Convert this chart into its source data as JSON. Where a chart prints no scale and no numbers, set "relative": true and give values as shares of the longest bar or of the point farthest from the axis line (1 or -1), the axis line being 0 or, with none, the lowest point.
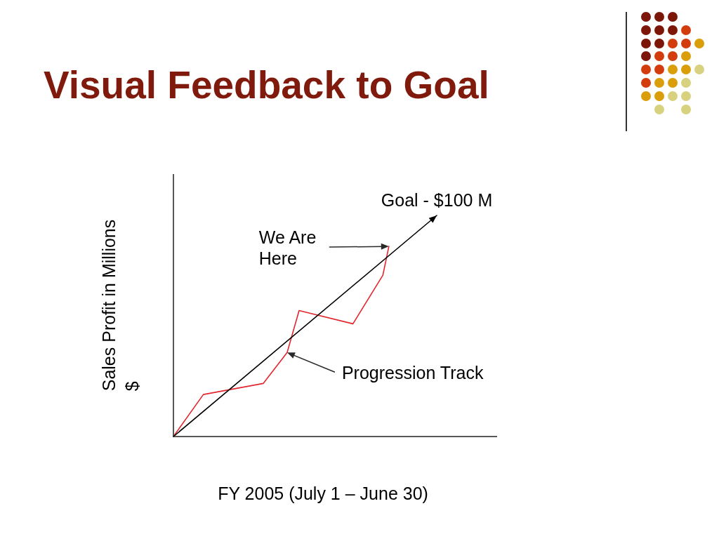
{
  "chart_data": {
    "type": "line",
    "title": "Visual Feedback to Goal",
    "xlabel": "FY 2005 (July 1 – June 30)",
    "ylabel": "Sales Profit in Millions $",
    "relative": true,
    "categories": [
      null,
      null,
      null,
      null,
      null,
      null,
      null,
      null,
      null,
      null,
      null,
      null,
      null,
      null,
      null,
      null,
      null,
      null,
      null,
      null,
      null,
      null,
      null,
      null,
      null,
      null,
      null,
      null,
      null,
      null,
      null,
      null,
      null,
      null,
      null,
      null,
      null,
      null,
      null,
      null,
      null,
      null,
      null,
      null,
      null
    ],
    "series": [
      {
        "color": "#000000",
        "values": [
          0,
          null,
          null,
          null,
          null,
          null,
          null,
          null,
          null,
          null,
          null,
          null,
          null,
          null,
          null,
          null,
          null,
          null,
          null,
          null,
          null,
          null,
          null,
          null,
          null,
          null,
          null,
          null,
          null,
          null,
          null,
          null,
          null,
          null,
          null,
          null,
          null,
          null,
          null,
          null,
          null,
          null,
          null,
          null,
          1
        ]
      },
      {
        "color": "#e3262e",
        "values": [
          0,
          null,
          null,
          null,
          null,
          0.19,
          null,
          null,
          null,
          null,
          null,
          null,
          null,
          null,
          null,
          0.24,
          null,
          null,
          null,
          0.38,
          null,
          0.57,
          null,
          null,
          null,
          null,
          null,
          null,
          null,
          null,
          0.51,
          null,
          null,
          null,
          null,
          0.73,
          0.86,
          null,
          null,
          null,
          null,
          null,
          null,
          null,
          null
        ]
      }
    ],
    "annotations": [
      {
        "text": "Goal - $100 M",
        "y": 1
      },
      "We Are Here",
      "Progression Track"
    ]
  }
}
